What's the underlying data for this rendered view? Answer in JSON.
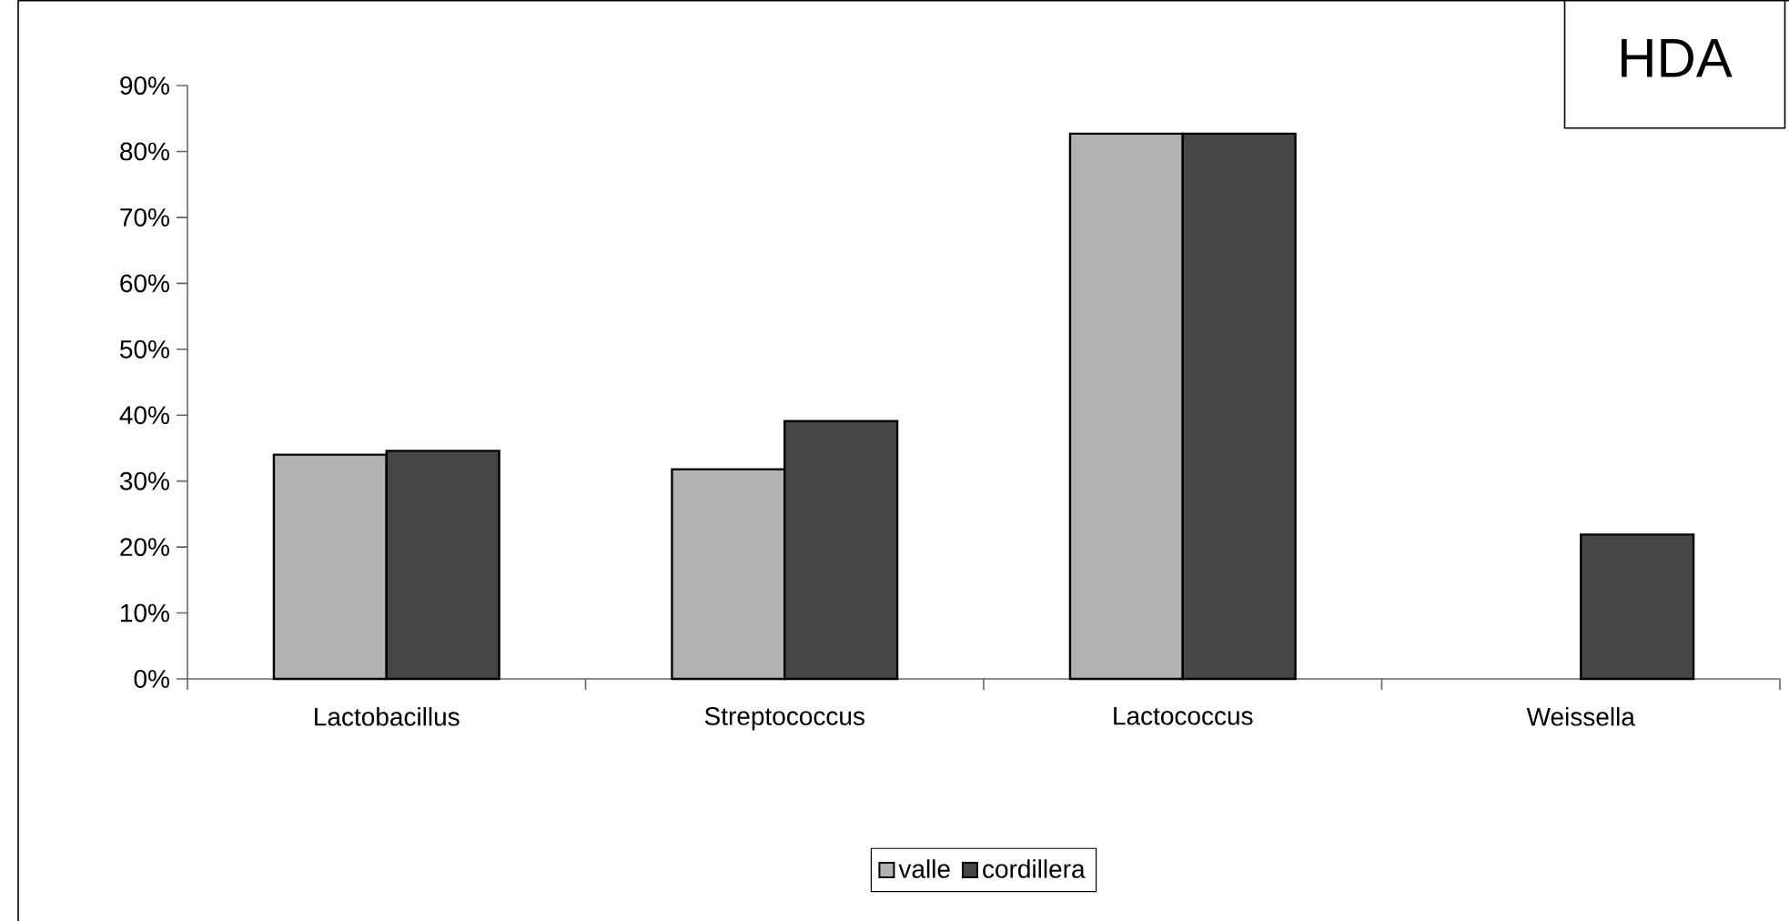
{
  "chart_data": {
    "type": "bar",
    "title": "HDA",
    "categories": [
      "Lactobacillus",
      "Streptococcus",
      "Lactococcus",
      "Weissella"
    ],
    "series": [
      {
        "name": "valle",
        "color": "#b2b2b2",
        "values": [
          34,
          31.8,
          82.7,
          null
        ]
      },
      {
        "name": "cordillera",
        "color": "#464646",
        "values": [
          34.6,
          39.1,
          82.7,
          21.9
        ]
      }
    ],
    "ylim": [
      0,
      90
    ],
    "yticks": [
      {
        "value": 0,
        "label": "0%"
      },
      {
        "value": 10,
        "label": "10%"
      },
      {
        "value": 20,
        "label": "20%"
      },
      {
        "value": 30,
        "label": "30%"
      },
      {
        "value": 40,
        "label": "40%"
      },
      {
        "value": 50,
        "label": "50%"
      },
      {
        "value": 60,
        "label": "60%"
      },
      {
        "value": 70,
        "label": "70%"
      },
      {
        "value": 80,
        "label": "80%"
      },
      {
        "value": 90,
        "label": "90%"
      }
    ],
    "grid": false,
    "legend": "bottom"
  }
}
